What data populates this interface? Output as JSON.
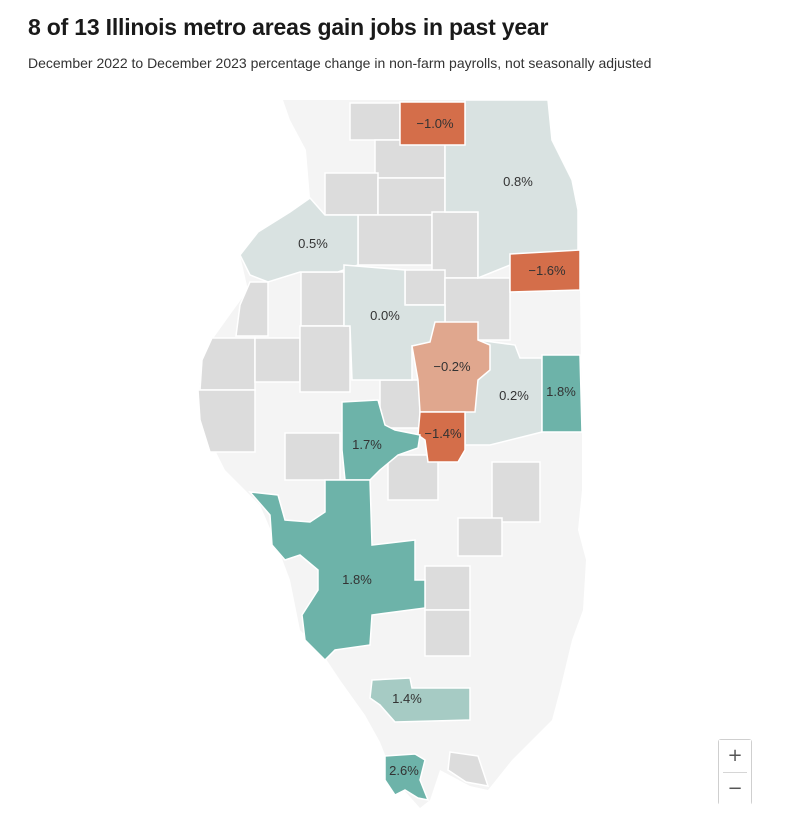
{
  "title": "8 of 13 Illinois metro areas gain jobs in past year",
  "subtitle": "December 2022 to December 2023 percentage change in non-farm payrolls, not seasonally adjusted",
  "colors": {
    "state_bg": "#f4f4f4",
    "non_metro": "#dcdcdc",
    "near_zero": "#d9e2e1",
    "light_pos": "#a6cbc4",
    "strong_pos": "#6db3a9",
    "light_neg": "#e0a78e",
    "strong_neg": "#d46e4a"
  },
  "metro_labels": {
    "rockford": "−1.0%",
    "chicago": "0.8%",
    "quad_cities": "0.5%",
    "kankakee": "−1.6%",
    "peoria": "0.0%",
    "bloomington": "−0.2%",
    "champaign": "0.2%",
    "danville": "1.8%",
    "decatur": "−1.4%",
    "springfield": "1.7%",
    "metro_east": "1.8%",
    "carbondale": "1.4%",
    "cape_girardeau": "2.6%"
  },
  "zoom": {
    "in_label": "+",
    "out_label": "−"
  }
}
